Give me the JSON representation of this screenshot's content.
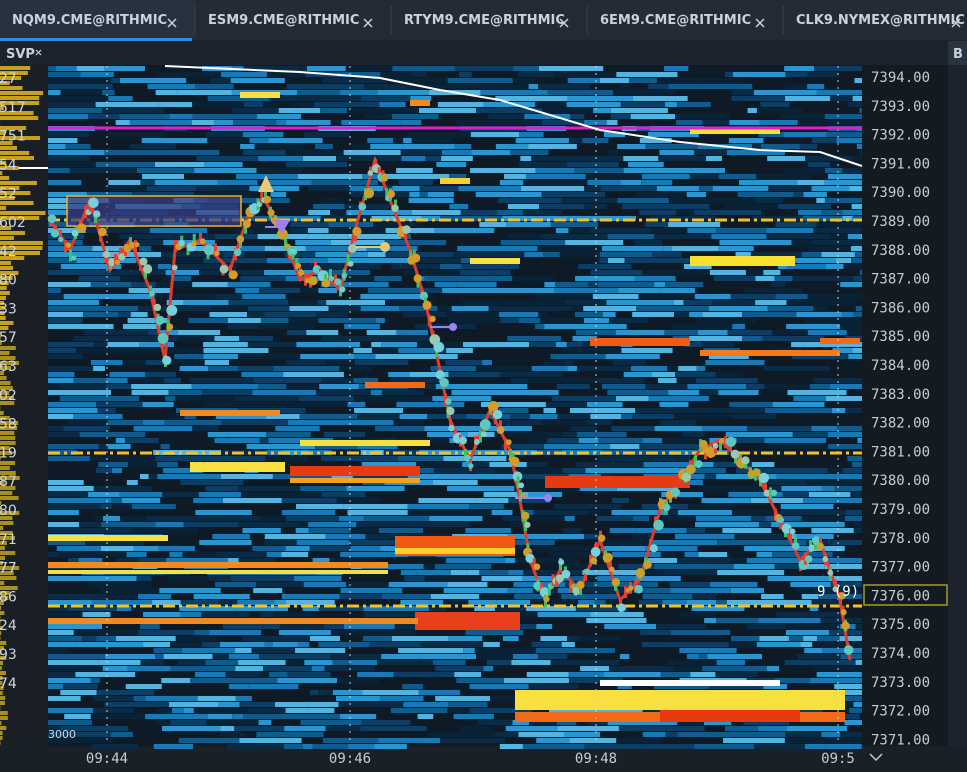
{
  "tabs": [
    {
      "label": "NQM9.CME@RITHMIC"
    },
    {
      "label": "ESM9.CME@RITHMIC"
    },
    {
      "label": "RTYM9.CME@RITHMIC"
    },
    {
      "label": "6EM9.CME@RITHMIC"
    },
    {
      "label": "CLK9.NYMEX@RITHMIC"
    }
  ],
  "right_tab": "B",
  "panel_label": "SVP",
  "profile_labels": [
    "27",
    "517",
    "751",
    "54",
    "52",
    "602",
    "42",
    "80",
    "33",
    "57",
    "63",
    "02",
    "58",
    "19",
    "87",
    "80",
    "71",
    "77",
    "86",
    "24",
    "93",
    "74"
  ],
  "volume_label": "3000",
  "price_axis": [
    "7394.00",
    "7393.00",
    "7392.00",
    "7391.00",
    "7390.00",
    "7389.00",
    "7388.00",
    "7387.00",
    "7386.00",
    "7385.00",
    "7384.00",
    "7383.00",
    "7382.00",
    "7381.00",
    "7380.00",
    "7379.00",
    "7378.00",
    "7377.00",
    "7376.00",
    "7375.00",
    "7374.00",
    "7373.00",
    "7372.00",
    "7371.00"
  ],
  "time_axis": [
    "09:44",
    "09:46",
    "09:48",
    "09:5"
  ],
  "marker_label": "9 (9)"
}
